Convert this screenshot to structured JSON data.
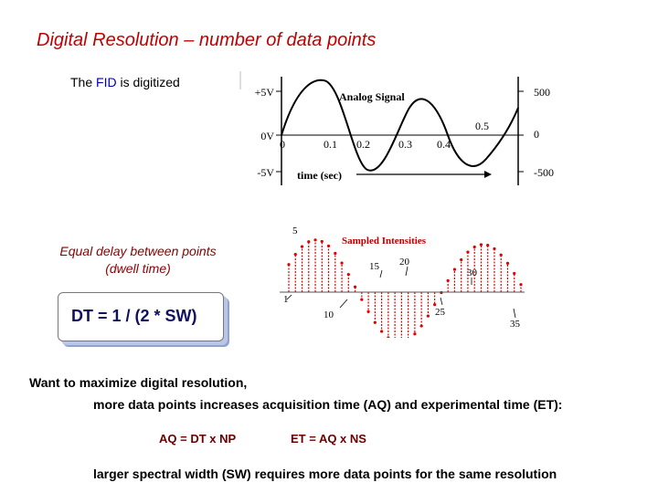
{
  "slide": {
    "title": "Digital Resolution – number of data points",
    "fid_prefix": "The ",
    "fid_highlight": "FID",
    "fid_suffix": " is digitized",
    "delay_line1": "Equal delay between points",
    "delay_line2": "(dwell time)",
    "dt_formula": "DT = 1 / (2 * SW)",
    "want_line1": "Want to maximize digital resolution,",
    "want_line2": "more data points increases acquisition time (AQ) and experimental time (ET):",
    "aq_formula": "AQ = DT x NP",
    "et_formula": "ET = AQ x NS",
    "larger_line": "larger spectral width (SW) requires more data points for the same resolution"
  },
  "analog": {
    "title": "Analog Signal",
    "y_left": [
      "+5V",
      "0V",
      "-5V"
    ],
    "y_right": [
      "500",
      "0",
      "-500"
    ],
    "x_ticks": [
      "0",
      "0.1",
      "0.2",
      "0.3",
      "0.4",
      "0.5"
    ],
    "x_label": "time (sec)"
  },
  "sampled": {
    "title": "Sampled Intensities",
    "point_labels": [
      "1",
      "5",
      "10",
      "15",
      "20",
      "25",
      "30",
      "35"
    ]
  },
  "colors": {
    "title": "#c00000",
    "red_samples": "#e00000",
    "box_shadow": "#8fa3d2"
  }
}
